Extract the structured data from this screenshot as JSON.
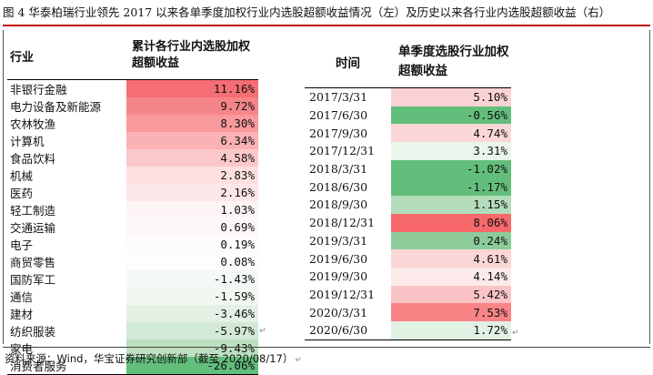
{
  "title": "图 4 华泰柏瑞行业领先 2017 以来各单季度加权行业内选股超额收益情况（左）及历史以来各行业内选股超额收益（右）",
  "left_table": {
    "header_col1": "行业",
    "header_col2": "累计各行业内选股加权超额收益",
    "rows": [
      {
        "industry": "非银行金融",
        "value": "11.16%",
        "color": "#f46e73"
      },
      {
        "industry": "电力设备及新能源",
        "value": "9.72%",
        "color": "#f68589"
      },
      {
        "industry": "农林牧渔",
        "value": "8.30%",
        "color": "#f8999c"
      },
      {
        "industry": "计算机",
        "value": "6.34%",
        "color": "#fab2b4"
      },
      {
        "industry": "食品饮料",
        "value": "4.58%",
        "color": "#fbc8ca"
      },
      {
        "industry": "机械",
        "value": "2.83%",
        "color": "#fddfe0"
      },
      {
        "industry": "医药",
        "value": "2.16%",
        "color": "#fde6e7"
      },
      {
        "industry": "轻工制造",
        "value": "1.03%",
        "color": "#fef4f5"
      },
      {
        "industry": "交通运输",
        "value": "0.69%",
        "color": "#fef7f8"
      },
      {
        "industry": "电子",
        "value": "0.19%",
        "color": "#fefbfc"
      },
      {
        "industry": "商贸零售",
        "value": "0.08%",
        "color": "#fefcfd"
      },
      {
        "industry": "国防军工",
        "value": "-1.43%",
        "color": "#f3f9f4"
      },
      {
        "industry": "通信",
        "value": "-1.59%",
        "color": "#f1f8f2"
      },
      {
        "industry": "建材",
        "value": "-3.46%",
        "color": "#e3f1e5"
      },
      {
        "industry": "纺织服装",
        "value": "-5.97%",
        "color": "#d2e9d5"
      },
      {
        "industry": "家电",
        "value": "-9.43%",
        "color": "#bce0c0"
      },
      {
        "industry": "消费者服务",
        "value": "-26.06%",
        "color": "#63be7b"
      }
    ]
  },
  "right_table": {
    "header_col1": "时间",
    "header_col2": "单季度选股行业加权超额收益",
    "rows": [
      {
        "date": "2017/3/31",
        "value": "5.10%",
        "color": "#fbd2d3"
      },
      {
        "date": "2017/6/30",
        "value": "-0.56%",
        "color": "#63be7b"
      },
      {
        "date": "2017/9/30",
        "value": "4.74%",
        "color": "#fbd7d8"
      },
      {
        "date": "2017/12/31",
        "value": "3.31%",
        "color": "#eaf5ec"
      },
      {
        "date": "2018/3/31",
        "value": "-1.02%",
        "color": "#63be7b"
      },
      {
        "date": "2018/6/30",
        "value": "-1.17%",
        "color": "#63be7b"
      },
      {
        "date": "2018/9/30",
        "value": "1.15%",
        "color": "#b3dcba"
      },
      {
        "date": "2018/12/31",
        "value": "8.06%",
        "color": "#f8696b"
      },
      {
        "date": "2019/3/31",
        "value": "0.24%",
        "color": "#8dcc9a"
      },
      {
        "date": "2019/6/30",
        "value": "4.61%",
        "color": "#fbd6d7"
      },
      {
        "date": "2019/9/30",
        "value": "4.14%",
        "color": "#fce9ea"
      },
      {
        "date": "2019/12/31",
        "value": "5.42%",
        "color": "#fac4c6"
      },
      {
        "date": "2020/3/31",
        "value": "7.53%",
        "color": "#f98486"
      },
      {
        "date": "2020/6/30",
        "value": "1.72%",
        "color": "#e1f1e4"
      }
    ]
  },
  "source": "资料来源：Wind，华宝证券研究创新部（截至 2020/08/17）",
  "return_mark": "↵"
}
